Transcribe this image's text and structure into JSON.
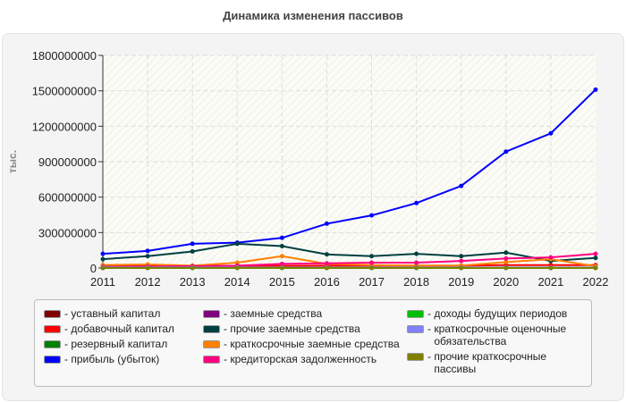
{
  "chart_data": {
    "type": "line",
    "title": "Динамика изменения пассивов",
    "ylabel": "тыс.",
    "xlabel": "",
    "categories": [
      "2011",
      "2012",
      "2013",
      "2014",
      "2015",
      "2016",
      "2017",
      "2018",
      "2019",
      "2020",
      "2021",
      "2022"
    ],
    "ylim": [
      0,
      1800000000
    ],
    "yticks": [
      "0",
      "300000000",
      "600000000",
      "900000000",
      "1200000000",
      "1500000000",
      "1800000000"
    ],
    "grid": true,
    "legend_position": "bottom",
    "series": [
      {
        "name": "уставный капитал",
        "color": "#800000",
        "values": [
          1000000,
          1000000,
          1000000,
          1000000,
          1000000,
          1000000,
          1000000,
          1000000,
          1000000,
          1000000,
          1000000,
          1000000
        ]
      },
      {
        "name": "добавочный капитал",
        "color": "#ff0000",
        "values": [
          15000000,
          15000000,
          18000000,
          18000000,
          18000000,
          20000000,
          20000000,
          20000000,
          20000000,
          25000000,
          25000000,
          25000000
        ]
      },
      {
        "name": "резервный капитал",
        "color": "#008000",
        "values": [
          2000000,
          2000000,
          2000000,
          2000000,
          2000000,
          2000000,
          2000000,
          2000000,
          2000000,
          2000000,
          2000000,
          2000000
        ]
      },
      {
        "name": "прибыль (убыток)",
        "color": "#0000ff",
        "values": [
          120000000,
          145000000,
          205000000,
          215000000,
          255000000,
          375000000,
          445000000,
          550000000,
          695000000,
          985000000,
          1140000000,
          1510000000
        ]
      },
      {
        "name": "заемные средства",
        "color": "#800080",
        "values": [
          3000000,
          3000000,
          3000000,
          3000000,
          3000000,
          3000000,
          3000000,
          3000000,
          3000000,
          3000000,
          3000000,
          3000000
        ]
      },
      {
        "name": "прочие заемные средства",
        "color": "#004040",
        "values": [
          75000000,
          100000000,
          140000000,
          205000000,
          185000000,
          115000000,
          100000000,
          120000000,
          100000000,
          130000000,
          60000000,
          85000000
        ]
      },
      {
        "name": "краткосрочные заемные средства",
        "color": "#ff8000",
        "values": [
          25000000,
          30000000,
          20000000,
          45000000,
          100000000,
          35000000,
          25000000,
          20000000,
          20000000,
          50000000,
          75000000,
          15000000
        ]
      },
      {
        "name": "кредиторская задолженность",
        "color": "#ff0080",
        "values": [
          10000000,
          12000000,
          15000000,
          20000000,
          35000000,
          40000000,
          45000000,
          45000000,
          60000000,
          80000000,
          90000000,
          120000000
        ]
      },
      {
        "name": "доходы будущих периодов",
        "color": "#00c000",
        "values": [
          0,
          0,
          0,
          0,
          0,
          0,
          0,
          0,
          0,
          0,
          0,
          0
        ]
      },
      {
        "name": "краткосрочные оценочные обязательства",
        "color": "#8080ff",
        "values": [
          5000000,
          5000000,
          5000000,
          5000000,
          5000000,
          5000000,
          5000000,
          5000000,
          5000000,
          5000000,
          5000000,
          5000000
        ]
      },
      {
        "name": "прочие краткосрочные пассивы",
        "color": "#808000",
        "values": [
          1000000,
          1000000,
          1000000,
          1000000,
          1000000,
          1000000,
          1000000,
          1000000,
          1000000,
          1000000,
          1000000,
          1000000
        ]
      }
    ]
  }
}
